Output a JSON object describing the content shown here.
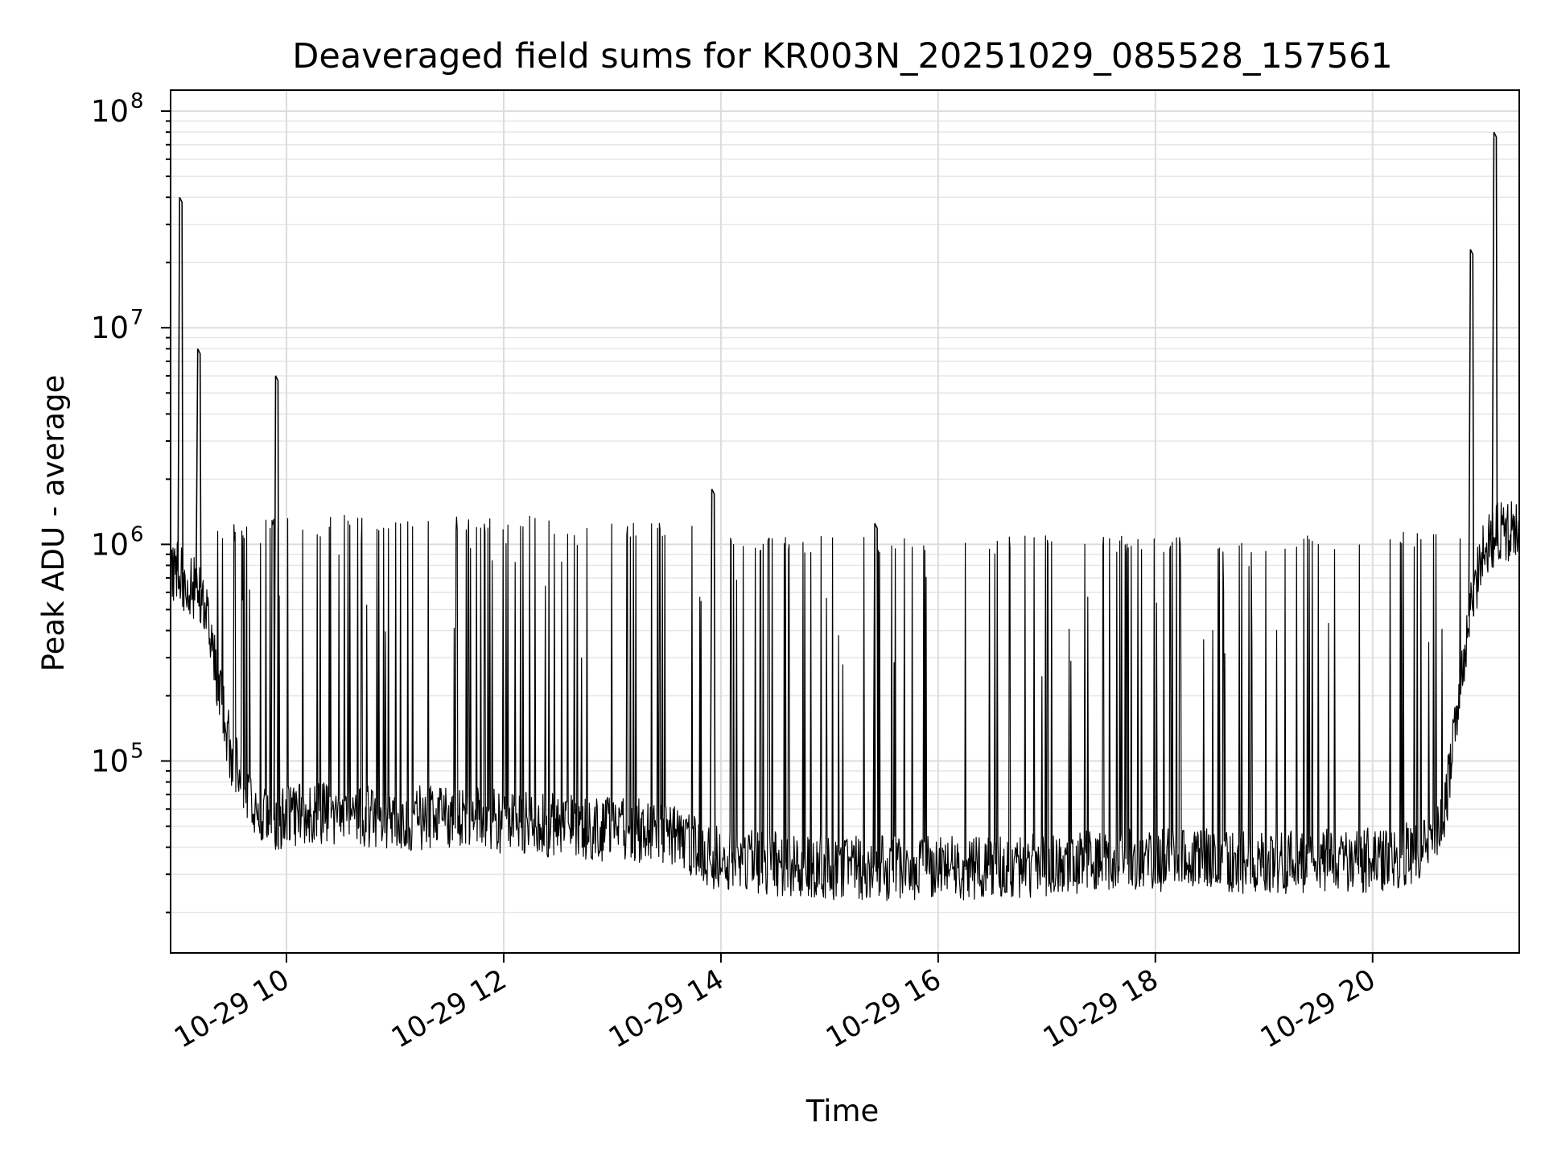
{
  "chart_data": {
    "type": "line",
    "title": "Deaveraged field sums for KR003N_20251029_085528_157561",
    "xlabel": "Time",
    "ylabel": "Peak ADU - average",
    "yscale": "log",
    "xlim": [
      "2025-10-29 08:56",
      "2025-10-29 21:21"
    ],
    "ylim": [
      13000,
      125000000
    ],
    "x_ticks": [
      {
        "value": "2025-10-29 10:00",
        "label": "10-29 10"
      },
      {
        "value": "2025-10-29 12:00",
        "label": "10-29 12"
      },
      {
        "value": "2025-10-29 14:00",
        "label": "10-29 14"
      },
      {
        "value": "2025-10-29 16:00",
        "label": "10-29 16"
      },
      {
        "value": "2025-10-29 18:00",
        "label": "10-29 18"
      },
      {
        "value": "2025-10-29 20:00",
        "label": "10-29 20"
      }
    ],
    "y_ticks": [
      {
        "value": 100000,
        "base": "10",
        "exp": "5"
      },
      {
        "value": 1000000,
        "base": "10",
        "exp": "6"
      },
      {
        "value": 10000000,
        "base": "10",
        "exp": "7"
      },
      {
        "value": 100000000,
        "base": "10",
        "exp": "8"
      }
    ],
    "grid": true,
    "line_color": "#000000",
    "series": [
      {
        "name": "",
        "baseline": [
          {
            "x": "2025-10-29 08:56",
            "y": 700000
          },
          {
            "x": "2025-10-29 09:00",
            "y": 800000
          },
          {
            "x": "2025-10-29 09:05",
            "y": 600000
          },
          {
            "x": "2025-10-29 09:10",
            "y": 650000
          },
          {
            "x": "2025-10-29 09:15",
            "y": 550000
          },
          {
            "x": "2025-10-29 09:20",
            "y": 300000
          },
          {
            "x": "2025-10-29 09:30",
            "y": 100000
          },
          {
            "x": "2025-10-29 09:40",
            "y": 70000
          },
          {
            "x": "2025-10-29 09:50",
            "y": 52000
          },
          {
            "x": "2025-10-29 10:00",
            "y": 55000
          },
          {
            "x": "2025-10-29 10:10",
            "y": 56000
          },
          {
            "x": "2025-10-29 10:30",
            "y": 58000
          },
          {
            "x": "2025-10-29 11:00",
            "y": 54000
          },
          {
            "x": "2025-10-29 11:30",
            "y": 55000
          },
          {
            "x": "2025-10-29 12:00",
            "y": 52000
          },
          {
            "x": "2025-10-29 12:30",
            "y": 50000
          },
          {
            "x": "2025-10-29 13:00",
            "y": 48000
          },
          {
            "x": "2025-10-29 13:30",
            "y": 47000
          },
          {
            "x": "2025-10-29 13:45",
            "y": 40000
          },
          {
            "x": "2025-10-29 14:00",
            "y": 35000
          },
          {
            "x": "2025-10-29 15:00",
            "y": 32000
          },
          {
            "x": "2025-10-29 16:00",
            "y": 32000
          },
          {
            "x": "2025-10-29 17:00",
            "y": 33000
          },
          {
            "x": "2025-10-29 18:00",
            "y": 35000
          },
          {
            "x": "2025-10-29 19:00",
            "y": 34000
          },
          {
            "x": "2025-10-29 20:00",
            "y": 35000
          },
          {
            "x": "2025-10-29 20:30",
            "y": 38000
          },
          {
            "x": "2025-10-29 20:40",
            "y": 60000
          },
          {
            "x": "2025-10-29 20:50",
            "y": 300000
          },
          {
            "x": "2025-10-29 21:00",
            "y": 900000
          },
          {
            "x": "2025-10-29 21:10",
            "y": 1200000
          },
          {
            "x": "2025-10-29 21:21",
            "y": 1100000
          }
        ],
        "spike_level": [
          {
            "x": "2025-10-29 09:20",
            "y": 1100000
          },
          {
            "x": "2025-10-29 10:00",
            "y": 1250000
          },
          {
            "x": "2025-10-29 12:00",
            "y": 1250000
          },
          {
            "x": "2025-10-29 13:30",
            "y": 1150000
          },
          {
            "x": "2025-10-29 14:30",
            "y": 1000000
          },
          {
            "x": "2025-10-29 20:00",
            "y": 1000000
          },
          {
            "x": "2025-10-29 20:50",
            "y": 1150000
          }
        ],
        "peaks": [
          {
            "x": "2025-10-29 09:01",
            "y": 40000000
          },
          {
            "x": "2025-10-29 09:11",
            "y": 8000000
          },
          {
            "x": "2025-10-29 09:54",
            "y": 6000000
          },
          {
            "x": "2025-10-29 13:55",
            "y": 1800000
          },
          {
            "x": "2025-10-29 15:25",
            "y": 1250000
          },
          {
            "x": "2025-10-29 20:54",
            "y": 23000000
          },
          {
            "x": "2025-10-29 21:07",
            "y": 80000000
          }
        ]
      }
    ]
  }
}
